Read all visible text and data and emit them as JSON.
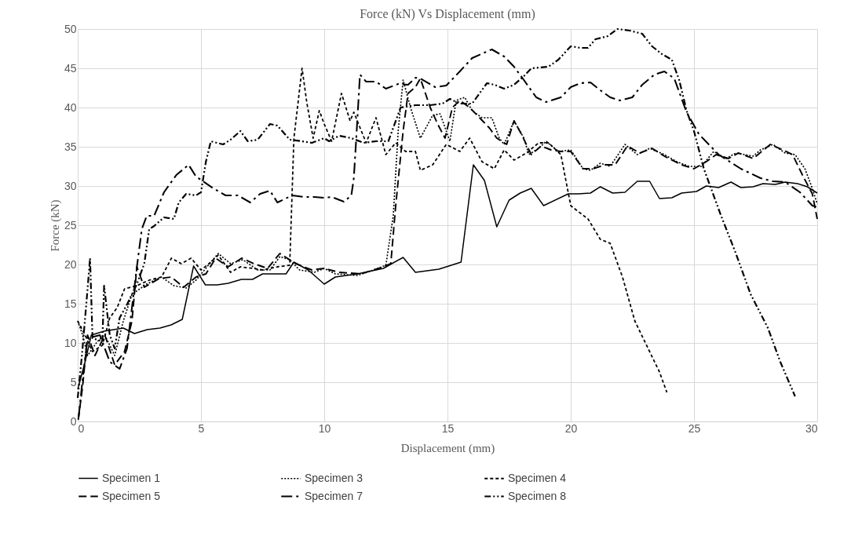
{
  "chart_data": {
    "type": "line",
    "title": "Force (kN) Vs Displacement (mm)",
    "xlabel": "Displacement (mm)",
    "ylabel": "Force (kN)",
    "xlim": [
      0,
      30
    ],
    "ylim": [
      0,
      50
    ],
    "xticks": [
      0,
      5,
      10,
      15,
      20,
      25,
      30
    ],
    "yticks": [
      0,
      5,
      10,
      15,
      20,
      25,
      30,
      35,
      40,
      45,
      50
    ],
    "grid": true,
    "legend": "bottom",
    "marker": "none",
    "series": [
      {
        "name": "Specimen 1",
        "color": "#000000",
        "line_style": "solid",
        "x": [
          0,
          0.3,
          0.55,
          1.07,
          1.85,
          2.3,
          2.82,
          3.34,
          3.79,
          4.24,
          4.7,
          5.18,
          5.66,
          6.1,
          6.64,
          7.09,
          7.5,
          8.45,
          8.77,
          9.35,
          10,
          10.45,
          11.35,
          12.4,
          13.2,
          13.7,
          14.65,
          15.55,
          16.05,
          16.5,
          17,
          17.5,
          17.95,
          18.4,
          18.9,
          19.9,
          20.3,
          20.8,
          21.2,
          21.7,
          22.2,
          22.7,
          23.2,
          23.6,
          24.1,
          24.5,
          25.1,
          25.5,
          26,
          26.5,
          26.9,
          27.4,
          27.8,
          28.3,
          28.7,
          29.2,
          29.6,
          30
        ],
        "values": [
          4.1,
          7.6,
          11,
          11.5,
          11.9,
          11.2,
          11.7,
          11.9,
          12.3,
          13,
          19.8,
          17.4,
          17.4,
          17.6,
          18.1,
          18.1,
          18.8,
          18.8,
          20.3,
          19.3,
          17.5,
          18.4,
          18.8,
          19.5,
          20.9,
          19,
          19.4,
          20.3,
          32.7,
          30.7,
          24.8,
          28.2,
          29.1,
          29.7,
          27.5,
          29,
          29,
          29.1,
          29.9,
          29.1,
          29.2,
          30.6,
          30.6,
          28.4,
          28.5,
          29.1,
          29.3,
          30,
          29.8,
          30.5,
          29.8,
          29.9,
          30.3,
          30.2,
          30.5,
          30.3,
          29.9,
          29.1
        ]
      },
      {
        "name": "Specimen 3",
        "color": "#000000",
        "line_style": "dotted",
        "x": [
          0,
          0.2,
          0.4,
          0.8,
          1.1,
          1.5,
          1.85,
          2.2,
          2.8,
          3.4,
          3.9,
          4.4,
          4.8,
          5.35,
          5.7,
          6.2,
          6.7,
          7.3,
          7.8,
          8.2,
          8.6,
          9,
          9.6,
          10,
          10.45,
          11.35,
          12,
          12.5,
          12.8,
          13,
          13.2,
          13.5,
          13.9,
          14.4,
          14.7,
          15.1,
          15.35,
          15.7,
          16,
          16.4,
          16.8,
          17.1,
          17.3,
          17.7,
          18.1,
          18.3,
          18.7,
          19,
          19.5,
          20,
          20.5,
          20.8,
          21.2,
          21.6,
          22.2,
          22.7,
          23.2,
          23.8,
          24.3,
          24.8,
          25.3,
          25.8,
          26.3,
          26.7,
          27.4,
          27.7,
          28.2,
          28.7,
          29.1,
          29.5,
          29.8,
          30
        ],
        "values": [
          12.8,
          11,
          8.4,
          10.2,
          11,
          8.4,
          12.8,
          16.2,
          17.5,
          18.4,
          17.3,
          17,
          18,
          20.1,
          21.4,
          20.1,
          20.6,
          19.3,
          19.3,
          21,
          20.6,
          19.3,
          19,
          19.5,
          18.8,
          18.6,
          19.3,
          19.9,
          26.2,
          37,
          43.5,
          40,
          36.1,
          39,
          39.2,
          35.7,
          40.9,
          41.3,
          39.6,
          38.7,
          38.7,
          36.1,
          35.3,
          38.3,
          36.1,
          34,
          34.8,
          35.7,
          34.4,
          34.6,
          32.2,
          32,
          32.9,
          32.5,
          35.3,
          34,
          34.8,
          34,
          33.1,
          32.5,
          32.5,
          34.4,
          33.5,
          34.2,
          33.8,
          34.6,
          35.3,
          34.2,
          34,
          32.2,
          29.7,
          27.7
        ]
      },
      {
        "name": "Specimen 4",
        "color": "#000000",
        "line_style": "dashed",
        "x": [
          0,
          0.3,
          0.6,
          1,
          1.3,
          1.6,
          1.9,
          2.4,
          2.9,
          3.4,
          3.8,
          4.2,
          4.6,
          5,
          5.4,
          5.7,
          6.2,
          6.6,
          7.1,
          7.5,
          8.1,
          8.6,
          8.77,
          9.1,
          9.3,
          9.55,
          9.8,
          10,
          10.3,
          10.7,
          11.05,
          11.2,
          11.7,
          12.1,
          12.5,
          12.9,
          13.3,
          13.7,
          13.9,
          14.4,
          14.95,
          15.5,
          15.9,
          16.4,
          16.9,
          17.3,
          17.7,
          18.2,
          18.7,
          19.1,
          19.6,
          20,
          20.2,
          20.7,
          21.2,
          21.6,
          22.1,
          22.6,
          23.2,
          23.6,
          23.9
        ],
        "values": [
          12.8,
          11,
          8.9,
          9.7,
          13.2,
          14.5,
          16.9,
          17.3,
          18,
          18.4,
          20.8,
          20.1,
          20.8,
          19.3,
          20.3,
          21.2,
          19,
          19.7,
          19.5,
          19.3,
          19.7,
          19.9,
          36.1,
          45,
          40.5,
          36.1,
          39.6,
          37.9,
          35.7,
          41.8,
          38.3,
          39.4,
          35.5,
          38.7,
          34,
          35.5,
          34.4,
          34.4,
          32,
          32.7,
          35.3,
          34.4,
          36.1,
          33.1,
          32.2,
          34.6,
          33.3,
          34.2,
          35.5,
          35.5,
          34,
          27.5,
          27,
          25.8,
          23.2,
          22.7,
          18.4,
          12.8,
          8.9,
          6.3,
          3.7
        ]
      },
      {
        "name": "Specimen 5",
        "color": "#000000",
        "line_style": "long_dashed",
        "x": [
          0.02,
          0.2,
          0.4,
          0.7,
          1.1,
          1.5,
          1.9,
          2.2,
          2.4,
          2.7,
          3.3,
          3.8,
          4.3,
          4.8,
          5.2,
          5.6,
          6.1,
          6.65,
          7.15,
          7.7,
          8.2,
          8.6,
          8.85,
          9.5,
          10,
          10.6,
          11.5,
          12.4,
          12.7,
          12.9,
          13.2,
          13.4,
          13.7,
          13.9,
          14.3,
          14.6,
          14.9,
          15.2,
          15.5,
          15.9,
          16.3,
          16.7,
          17,
          17.4,
          17.7,
          18,
          18.4,
          18.8,
          19.2,
          19.6,
          20,
          20.5,
          20.9,
          21.4,
          21.8,
          22.3,
          22.8,
          23.3,
          23.8,
          24.5,
          25,
          25.5,
          25.9,
          26.4,
          26.8,
          27.4,
          28.1,
          28.6,
          29,
          29.4,
          29.8,
          30
        ],
        "values": [
          0.2,
          4.5,
          11,
          8.4,
          11,
          7.2,
          8.9,
          12.8,
          19.7,
          17.1,
          18.2,
          18.4,
          17.1,
          18.4,
          18.8,
          20.8,
          19.7,
          20.8,
          20.1,
          19.5,
          21.4,
          20.6,
          20.1,
          19.3,
          19.5,
          19,
          18.8,
          19.7,
          20.1,
          27.5,
          37,
          41.8,
          42.6,
          43.7,
          40,
          37.9,
          36.1,
          40,
          40.9,
          40,
          38.7,
          37.4,
          36.1,
          35.3,
          38.3,
          36.6,
          34,
          35.1,
          34.6,
          34.4,
          34.4,
          32.2,
          32.2,
          32.7,
          32.7,
          35.1,
          34.2,
          34.8,
          33.8,
          32.7,
          32.2,
          33.1,
          34,
          33.5,
          34.2,
          33.5,
          35.3,
          34.6,
          34,
          31.4,
          29,
          25.8
        ]
      },
      {
        "name": "Specimen 7",
        "color": "#000000",
        "line_style": "long_dash_dot",
        "x": [
          0.04,
          0.2,
          0.4,
          0.9,
          1.3,
          1.7,
          2,
          2.4,
          2.6,
          2.8,
          3.1,
          3.5,
          4,
          4.5,
          4.8,
          5.5,
          6,
          6.5,
          7,
          7.4,
          7.8,
          8.1,
          8.7,
          9.2,
          9.6,
          10,
          10.3,
          10.8,
          11.1,
          11.2,
          11.3,
          11.45,
          11.7,
          12.1,
          12.5,
          13,
          13.4,
          13.7,
          13.9,
          14.5,
          14.95,
          15.5,
          16,
          16.5,
          16.8,
          17.3,
          17.7,
          18.1,
          18.6,
          19,
          19.6,
          20,
          20.4,
          20.8,
          21.2,
          21.6,
          22,
          22.5,
          22.9,
          23.4,
          23.8,
          24.2,
          24.7,
          25.2,
          26,
          26.9,
          27.7,
          28.2,
          28.7,
          29.3,
          29.8,
          30
        ],
        "values": [
          0.6,
          5.4,
          10.6,
          11,
          7.6,
          6.7,
          9.3,
          19.7,
          24.5,
          26.2,
          26.2,
          29.2,
          31.4,
          32.7,
          31.2,
          29.7,
          28.8,
          28.8,
          27.9,
          29,
          29.4,
          27.9,
          28.8,
          28.6,
          28.6,
          28.5,
          28.6,
          28,
          28.8,
          31,
          36.1,
          44.2,
          43.3,
          43.3,
          42.4,
          43,
          42.9,
          43.8,
          43.7,
          42.6,
          42.8,
          44.6,
          46.3,
          47,
          47.4,
          46.5,
          45.2,
          43.5,
          41.3,
          40.7,
          41.3,
          42.6,
          43.1,
          43.2,
          42.2,
          41.3,
          40.9,
          41.3,
          42.9,
          44.2,
          44.6,
          43.7,
          39.4,
          36.6,
          34,
          32.2,
          31,
          30.6,
          30.5,
          29.2,
          27.5,
          27.3
        ]
      },
      {
        "name": "Specimen 8",
        "color": "#000000",
        "line_style": "dash_dot_dot",
        "x": [
          0,
          0.17,
          0.36,
          0.5,
          0.6,
          1,
          1.07,
          1.3,
          1.5,
          1.7,
          2,
          2.4,
          2.7,
          2.9,
          3.1,
          3.5,
          3.9,
          4.1,
          4.4,
          4.8,
          5,
          5.2,
          5.4,
          5.9,
          6.2,
          6.6,
          6.9,
          7.3,
          7.8,
          8.1,
          8.6,
          9.1,
          9.5,
          10,
          10.2,
          10.6,
          11.1,
          11.6,
          12.1,
          12.6,
          13.1,
          13.7,
          14.3,
          14.8,
          15.1,
          15.5,
          16,
          16.6,
          16.9,
          17.3,
          17.7,
          18.1,
          18.4,
          19.1,
          19.5,
          20,
          20.4,
          20.7,
          21,
          21.5,
          21.9,
          22.4,
          22.9,
          23.3,
          23.7,
          24.1,
          24.4,
          24.7,
          25,
          25.4,
          26.1,
          26.7,
          27.3,
          28,
          28.5,
          29.1
        ],
        "values": [
          3,
          8.4,
          15.4,
          20.8,
          10.6,
          10.2,
          17.3,
          11,
          9.3,
          13.2,
          14.9,
          17.5,
          20.1,
          24.5,
          24.9,
          26,
          25.8,
          27.9,
          29,
          28.8,
          29.2,
          33.1,
          35.7,
          35.3,
          35.9,
          37,
          35.7,
          35.9,
          37.9,
          37.7,
          35.9,
          35.7,
          35.5,
          36.1,
          35.7,
          36.4,
          36.1,
          35.5,
          35.7,
          35.7,
          40,
          40.3,
          40.3,
          40.5,
          41.1,
          40.5,
          40.5,
          43.1,
          42.9,
          42.4,
          42.9,
          44,
          45,
          45.2,
          46.1,
          47.8,
          47.6,
          47.6,
          48.7,
          49.1,
          50,
          49.8,
          49.4,
          47.8,
          46.8,
          46.1,
          43.5,
          39.6,
          37,
          32.2,
          26.2,
          21.4,
          16.2,
          11.9,
          7.6,
          3.2
        ]
      }
    ]
  }
}
